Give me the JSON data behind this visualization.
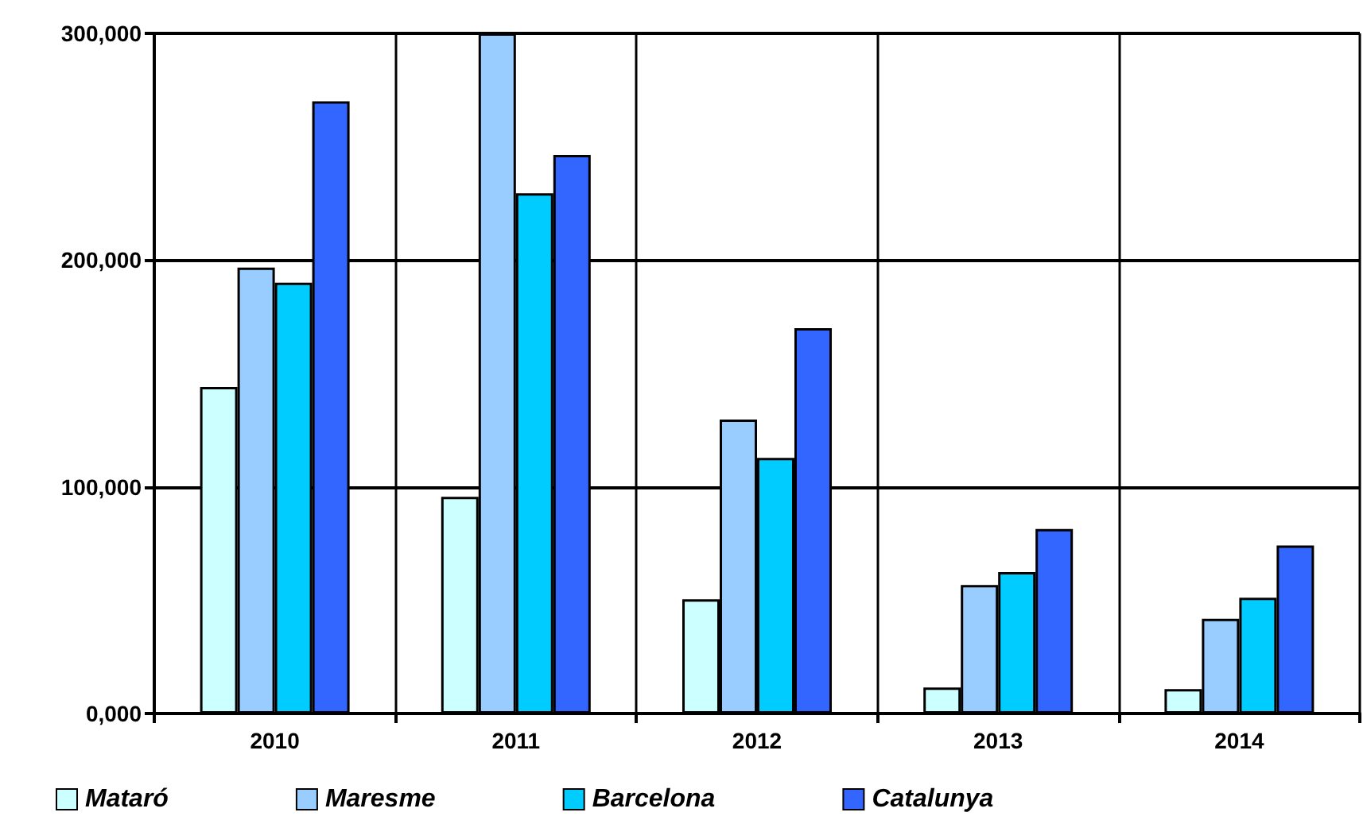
{
  "chart_data": {
    "type": "bar",
    "categories": [
      "2010",
      "2011",
      "2012",
      "2013",
      "2014"
    ],
    "series": [
      {
        "name": "Mataró",
        "color": "#ccffff",
        "values": [
          144000,
          95600,
          50400,
          11500,
          10800
        ]
      },
      {
        "name": "Maresme",
        "color": "#99ccff",
        "values": [
          196700,
          300000,
          129700,
          56700,
          41800
        ]
      },
      {
        "name": "Barcelona",
        "color": "#00ccff",
        "values": [
          190000,
          229500,
          112800,
          62400,
          51100
        ]
      },
      {
        "name": "Catalunya",
        "color": "#3366ff",
        "values": [
          270000,
          246400,
          170000,
          81400,
          74100
        ]
      }
    ],
    "ylim": [
      0,
      300000
    ],
    "yticks": [
      {
        "value": 0,
        "label": "0,000"
      },
      {
        "value": 100000,
        "label": "100,000"
      },
      {
        "value": 200000,
        "label": "200,000"
      },
      {
        "value": 300000,
        "label": "300,000"
      }
    ],
    "grid": true,
    "legend": "bottom"
  }
}
